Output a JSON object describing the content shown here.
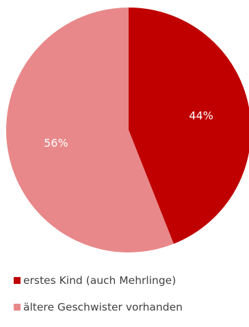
{
  "chart_data": {
    "type": "pie",
    "title": "",
    "start_angle_deg": 0,
    "direction": "clockwise",
    "slices": [
      {
        "name": "erstes Kind (auch Mehrlinge)",
        "value": 44,
        "label": "44%",
        "color": "#c00000"
      },
      {
        "name": "ältere Geschwister vorhanden",
        "value": 56,
        "label": "56%",
        "color": "#e8888a"
      }
    ],
    "legend": {
      "position": "bottom",
      "entries": [
        {
          "label": "erstes Kind (auch Mehrlinge)",
          "color": "#c00000"
        },
        {
          "label": "ältere Geschwister vorhanden",
          "color": "#e8888a"
        }
      ]
    }
  }
}
